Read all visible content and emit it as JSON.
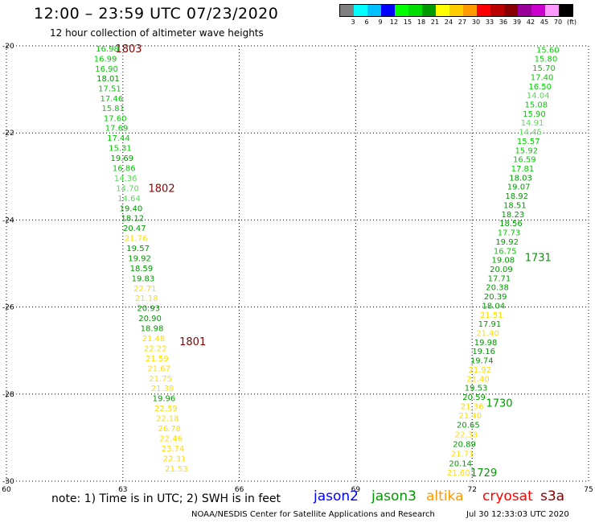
{
  "header": {
    "title": "12:00 – 23:59 UTC 07/23/2020",
    "subtitle": "12 hour collection of altimeter wave heights"
  },
  "legend": {
    "colors": [
      "#808080",
      "#00ffff",
      "#00c0ff",
      "#0000ff",
      "#00ff00",
      "#00dd00",
      "#009900",
      "#ffff00",
      "#ffcc00",
      "#ff9900",
      "#ff0000",
      "#bb0000",
      "#880000",
      "#990099",
      "#cc00cc",
      "#ff99ff",
      "#000000"
    ],
    "ticks": [
      "3",
      "6",
      "9",
      "12",
      "15",
      "18",
      "21",
      "24",
      "27",
      "30",
      "33",
      "36",
      "39",
      "42",
      "45",
      "70",
      "(ft)"
    ]
  },
  "footer": {
    "note": "note:  1) Time is in UTC;  2) SWH is in feet",
    "satellites": [
      {
        "name": "jason2",
        "color": "#0000ff"
      },
      {
        "name": "jason3",
        "color": "#009900"
      },
      {
        "name": "altika",
        "color": "#ff9900"
      },
      {
        "name": "cryosat",
        "color": "#ff0000"
      },
      {
        "name": "s3a",
        "color": "#880000"
      }
    ],
    "credit": "NOAA/NESDIS Center for Satellite Applications and Research",
    "timestamp": "Jul 30 12:33:03 UTC 2020"
  },
  "chart_data": {
    "type": "scatter",
    "xlim": [
      60,
      75
    ],
    "ylim": [
      -30,
      -20
    ],
    "xticks": [
      "60",
      "63",
      "66",
      "69",
      "72",
      "75"
    ],
    "yticks": [
      "-20",
      "-22",
      "-24",
      "-26",
      "-28",
      "-30"
    ],
    "grid": true,
    "units": "ft",
    "colors": {
      "g15": "#00cc00",
      "g18": "#55dd55",
      "g21": "#009900",
      "y24": "#ffdd00"
    },
    "tracks": [
      {
        "points": [
          {
            "x": 62.6,
            "y": -20.06,
            "v": "16.98",
            "c": "g15"
          },
          {
            "x": 62.55,
            "y": -20.29,
            "v": "16.99",
            "c": "g15"
          },
          {
            "x": 62.58,
            "y": -20.52,
            "v": "16.90",
            "c": "g15"
          },
          {
            "x": 62.62,
            "y": -20.74,
            "v": "18.01",
            "c": "g21"
          },
          {
            "x": 62.66,
            "y": -20.97,
            "v": "17.51",
            "c": "g15"
          },
          {
            "x": 62.71,
            "y": -21.2,
            "v": "17.46",
            "c": "g15"
          },
          {
            "x": 62.75,
            "y": -21.42,
            "v": "15.81",
            "c": "g15"
          },
          {
            "x": 62.8,
            "y": -21.65,
            "v": "17.60",
            "c": "g15"
          },
          {
            "x": 62.84,
            "y": -21.88,
            "v": "17.69",
            "c": "g15"
          },
          {
            "x": 62.89,
            "y": -22.11,
            "v": "17.44",
            "c": "g15"
          },
          {
            "x": 62.93,
            "y": -22.34,
            "v": "15.31",
            "c": "g15"
          },
          {
            "x": 62.98,
            "y": -22.57,
            "v": "19.69",
            "c": "g21"
          },
          {
            "x": 63.03,
            "y": -22.8,
            "v": "16.86",
            "c": "g15"
          },
          {
            "x": 63.07,
            "y": -23.03,
            "v": "14.36",
            "c": "g18"
          },
          {
            "x": 63.12,
            "y": -23.26,
            "v": "14.70",
            "c": "g18"
          },
          {
            "x": 63.16,
            "y": -23.49,
            "v": "14.64",
            "c": "g18"
          },
          {
            "x": 63.21,
            "y": -23.72,
            "v": "19.40",
            "c": "g21"
          },
          {
            "x": 63.25,
            "y": -23.95,
            "v": "18.12",
            "c": "g21"
          },
          {
            "x": 63.3,
            "y": -24.18,
            "v": "20.47",
            "c": "g21"
          },
          {
            "x": 63.34,
            "y": -24.41,
            "v": "21.76",
            "c": "y24"
          },
          {
            "x": 63.39,
            "y": -24.64,
            "v": "19.57",
            "c": "g21"
          },
          {
            "x": 63.43,
            "y": -24.87,
            "v": "19.92",
            "c": "g21"
          },
          {
            "x": 63.48,
            "y": -25.1,
            "v": "18.59",
            "c": "g21"
          },
          {
            "x": 63.52,
            "y": -25.33,
            "v": "19.83",
            "c": "g21"
          },
          {
            "x": 63.57,
            "y": -25.56,
            "v": "22.71",
            "c": "y24"
          },
          {
            "x": 63.61,
            "y": -25.79,
            "v": "21.18",
            "c": "y24"
          },
          {
            "x": 63.66,
            "y": -26.02,
            "v": "20.93",
            "c": "g21"
          },
          {
            "x": 63.7,
            "y": -26.25,
            "v": "20.90",
            "c": "g21"
          },
          {
            "x": 63.75,
            "y": -26.48,
            "v": "18.98",
            "c": "g21"
          },
          {
            "x": 63.79,
            "y": -26.71,
            "v": "21.48",
            "c": "y24"
          },
          {
            "x": 63.84,
            "y": -26.94,
            "v": "22.22",
            "c": "y24"
          },
          {
            "x": 63.88,
            "y": -27.17,
            "v": "21.59",
            "c": "y24"
          },
          {
            "x": 63.93,
            "y": -27.4,
            "v": "21.67",
            "c": "y24"
          },
          {
            "x": 63.97,
            "y": -27.63,
            "v": "21.75",
            "c": "y24"
          },
          {
            "x": 64.02,
            "y": -27.86,
            "v": "21.38",
            "c": "y24"
          },
          {
            "x": 64.06,
            "y": -28.09,
            "v": "19.96",
            "c": "g21"
          },
          {
            "x": 64.11,
            "y": -28.32,
            "v": "22.59",
            "c": "y24"
          },
          {
            "x": 64.15,
            "y": -28.55,
            "v": "22.18",
            "c": "y24"
          },
          {
            "x": 64.2,
            "y": -28.78,
            "v": "26.78",
            "c": "y24"
          },
          {
            "x": 64.24,
            "y": -29.01,
            "v": "22.46",
            "c": "y24"
          },
          {
            "x": 64.29,
            "y": -29.24,
            "v": "23.74",
            "c": "y24"
          },
          {
            "x": 64.33,
            "y": -29.47,
            "v": "22.31",
            "c": "y24"
          },
          {
            "x": 64.38,
            "y": -29.7,
            "v": "21.53",
            "c": "y24"
          }
        ]
      },
      {
        "points": [
          {
            "x": 71.65,
            "y": -29.8,
            "v": "21.60",
            "c": "y24"
          },
          {
            "x": 71.7,
            "y": -29.58,
            "v": "20.14",
            "c": "g21"
          },
          {
            "x": 71.75,
            "y": -29.36,
            "v": "21.71",
            "c": "y24"
          },
          {
            "x": 71.8,
            "y": -29.14,
            "v": "20.89",
            "c": "g21"
          },
          {
            "x": 71.85,
            "y": -28.92,
            "v": "22.33",
            "c": "y24"
          },
          {
            "x": 71.9,
            "y": -28.7,
            "v": "20.65",
            "c": "g21"
          },
          {
            "x": 71.95,
            "y": -28.48,
            "v": "21.40",
            "c": "y24"
          },
          {
            "x": 72.0,
            "y": -28.27,
            "v": "21.36",
            "c": "y24"
          },
          {
            "x": 72.05,
            "y": -28.06,
            "v": "20.59",
            "c": "g21"
          },
          {
            "x": 72.1,
            "y": -27.85,
            "v": "19.53",
            "c": "g21"
          },
          {
            "x": 72.15,
            "y": -27.64,
            "v": "21.40",
            "c": "y24"
          },
          {
            "x": 72.2,
            "y": -27.43,
            "v": "21.92",
            "c": "y24"
          },
          {
            "x": 72.25,
            "y": -27.22,
            "v": "19.74",
            "c": "g21"
          },
          {
            "x": 72.3,
            "y": -27.01,
            "v": "19.16",
            "c": "g21"
          },
          {
            "x": 72.35,
            "y": -26.8,
            "v": "19.98",
            "c": "g21"
          },
          {
            "x": 72.4,
            "y": -26.59,
            "v": "21.40",
            "c": "y24"
          },
          {
            "x": 72.45,
            "y": -26.38,
            "v": "17.91",
            "c": "g21"
          },
          {
            "x": 72.5,
            "y": -26.17,
            "v": "21.51",
            "c": "y24"
          },
          {
            "x": 72.55,
            "y": -25.96,
            "v": "18.04",
            "c": "g21"
          },
          {
            "x": 72.6,
            "y": -25.75,
            "v": "20.39",
            "c": "g21"
          },
          {
            "x": 72.65,
            "y": -25.54,
            "v": "20.38",
            "c": "g21"
          },
          {
            "x": 72.7,
            "y": -25.33,
            "v": "17.71",
            "c": "g21"
          },
          {
            "x": 72.75,
            "y": -25.12,
            "v": "20.09",
            "c": "g21"
          },
          {
            "x": 72.8,
            "y": -24.91,
            "v": "19.08",
            "c": "g21"
          },
          {
            "x": 72.85,
            "y": -24.7,
            "v": "16.75",
            "c": "g15"
          },
          {
            "x": 72.9,
            "y": -24.49,
            "v": "19.92",
            "c": "g21"
          },
          {
            "x": 72.95,
            "y": -24.28,
            "v": "17.73",
            "c": "g15"
          },
          {
            "x": 73.0,
            "y": -24.07,
            "v": "18.56",
            "c": "g21"
          },
          {
            "x": 73.05,
            "y": -23.86,
            "v": "18.23",
            "c": "g21"
          },
          {
            "x": 73.1,
            "y": -23.65,
            "v": "18.51",
            "c": "g21"
          },
          {
            "x": 73.15,
            "y": -23.44,
            "v": "18.92",
            "c": "g21"
          },
          {
            "x": 73.2,
            "y": -23.23,
            "v": "19.07",
            "c": "g21"
          },
          {
            "x": 73.25,
            "y": -23.02,
            "v": "18.03",
            "c": "g21"
          },
          {
            "x": 73.3,
            "y": -22.81,
            "v": "17.81",
            "c": "g15"
          },
          {
            "x": 73.35,
            "y": -22.6,
            "v": "16.59",
            "c": "g15"
          },
          {
            "x": 73.4,
            "y": -22.39,
            "v": "15.92",
            "c": "g15"
          },
          {
            "x": 73.45,
            "y": -22.18,
            "v": "15.57",
            "c": "g15"
          },
          {
            "x": 73.5,
            "y": -21.97,
            "v": "14.45",
            "c": "g18"
          },
          {
            "x": 73.55,
            "y": -21.76,
            "v": "14.91",
            "c": "g18"
          },
          {
            "x": 73.6,
            "y": -21.55,
            "v": "15.90",
            "c": "g15"
          },
          {
            "x": 73.65,
            "y": -21.34,
            "v": "15.08",
            "c": "g15"
          },
          {
            "x": 73.7,
            "y": -21.13,
            "v": "14.04",
            "c": "g18"
          },
          {
            "x": 73.75,
            "y": -20.92,
            "v": "16.50",
            "c": "g15"
          },
          {
            "x": 73.8,
            "y": -20.71,
            "v": "17.40",
            "c": "g15"
          },
          {
            "x": 73.85,
            "y": -20.5,
            "v": "15.70",
            "c": "g15"
          },
          {
            "x": 73.9,
            "y": -20.29,
            "v": "15.80",
            "c": "g15"
          },
          {
            "x": 73.95,
            "y": -20.08,
            "v": "15.60",
            "c": "g15"
          }
        ]
      }
    ],
    "time_labels": [
      {
        "text": "1803",
        "x": 63.15,
        "y": -20.06,
        "color": "#880000"
      },
      {
        "text": "1802",
        "x": 64.0,
        "y": -23.26,
        "color": "#880000"
      },
      {
        "text": "1801",
        "x": 64.8,
        "y": -26.78,
        "color": "#880000"
      },
      {
        "text": "1731",
        "x": 73.7,
        "y": -24.85,
        "color": "#009900"
      },
      {
        "text": "1730",
        "x": 72.7,
        "y": -28.2,
        "color": "#009900"
      },
      {
        "text": "1729",
        "x": 72.3,
        "y": -29.8,
        "color": "#009900"
      }
    ]
  }
}
